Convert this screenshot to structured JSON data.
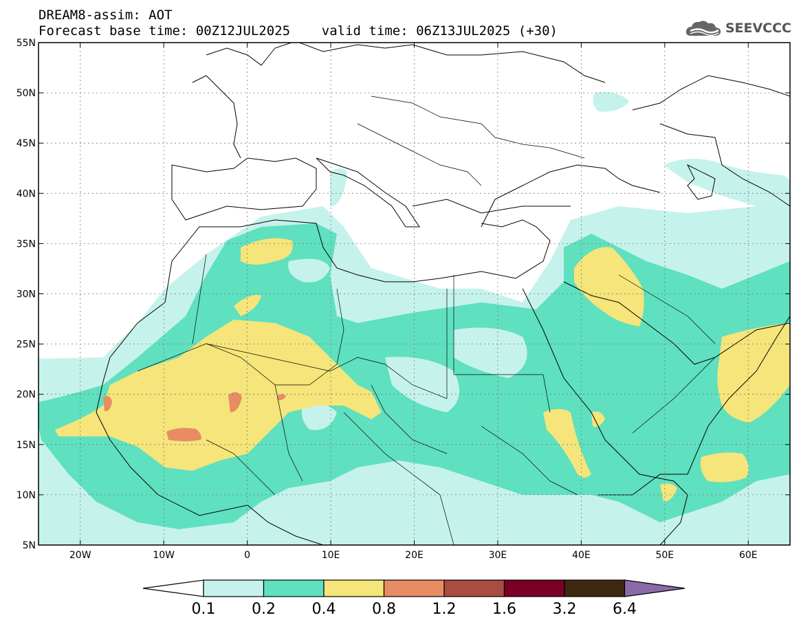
{
  "header": {
    "title_line1": "DREAM8-assim: AOT",
    "title_line2": "Forecast base time: 00Z12JUL2025    valid time: 06Z13JUL2025 (+30)"
  },
  "logo": {
    "text": "SEEVCCC",
    "icon": "cloud-logo-icon"
  },
  "map": {
    "lon_range": [
      -25,
      65
    ],
    "lat_range": [
      5,
      55
    ],
    "x_ticks": [
      {
        "lon": -20,
        "label": "20W"
      },
      {
        "lon": -10,
        "label": "10W"
      },
      {
        "lon": 0,
        "label": "0"
      },
      {
        "lon": 10,
        "label": "10E"
      },
      {
        "lon": 20,
        "label": "20E"
      },
      {
        "lon": 30,
        "label": "30E"
      },
      {
        "lon": 40,
        "label": "40E"
      },
      {
        "lon": 50,
        "label": "50E"
      },
      {
        "lon": 60,
        "label": "60E"
      }
    ],
    "y_ticks": [
      {
        "lat": 5,
        "label": "5N"
      },
      {
        "lat": 10,
        "label": "10N"
      },
      {
        "lat": 15,
        "label": "15N"
      },
      {
        "lat": 20,
        "label": "20N"
      },
      {
        "lat": 25,
        "label": "25N"
      },
      {
        "lat": 30,
        "label": "30N"
      },
      {
        "lat": 35,
        "label": "35N"
      },
      {
        "lat": 40,
        "label": "40N"
      },
      {
        "lat": 45,
        "label": "45N"
      },
      {
        "lat": 50,
        "label": "50N"
      },
      {
        "lat": 55,
        "label": "55N"
      }
    ],
    "grid": true,
    "field": "AOT",
    "colors": {
      "c01": "#c6f2ec",
      "c02": "#5fe0bf",
      "c04": "#f5e57a",
      "c08": "#e88c63",
      "c12": "#a84c44",
      "c16": "#7a0026",
      "c32": "#3d2812",
      "c64": "#8a6aa8"
    }
  },
  "colorbar": {
    "labels": [
      "0.1",
      "0.2",
      "0.4",
      "0.8",
      "1.2",
      "1.6",
      "3.2",
      "6.4"
    ],
    "colors": [
      "#c6f2ec",
      "#5fe0bf",
      "#f5e57a",
      "#e88c63",
      "#a84c44",
      "#7a0026",
      "#3d2812"
    ],
    "under_color": "#ffffff",
    "over_color": "#8a6aa8"
  }
}
